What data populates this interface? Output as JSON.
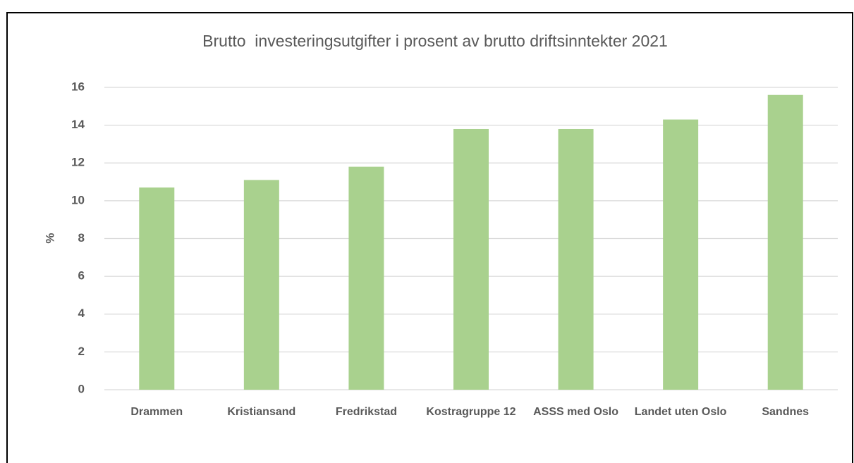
{
  "chart_data": {
    "type": "bar",
    "title": "Brutto  investeringsutgifter i prosent av brutto driftsinntekter 2021",
    "y_label": "%",
    "categories": [
      "Drammen",
      "Kristiansand",
      "Fredrikstad",
      "Kostragruppe 12",
      "ASSS med Oslo",
      "Landet uten Oslo",
      "Sandnes"
    ],
    "values": [
      10.7,
      11.1,
      11.8,
      13.8,
      13.8,
      14.3,
      15.6
    ],
    "color": "#a9d18e",
    "ylim": [
      0,
      16
    ],
    "yticks": [
      0,
      2,
      4,
      6,
      8,
      10,
      12,
      14,
      16
    ],
    "grid": true
  }
}
